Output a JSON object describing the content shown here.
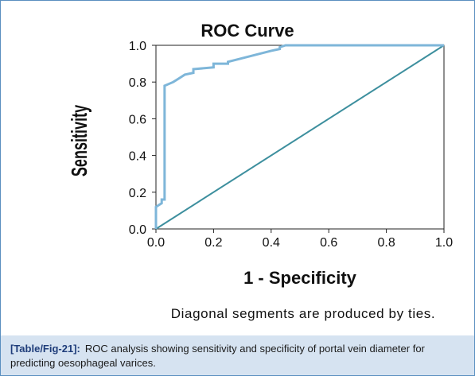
{
  "chart_data": {
    "type": "line",
    "title": "ROC Curve",
    "xlabel": "1 - Specificity",
    "ylabel": "Sensitivity",
    "xlim": [
      0,
      1
    ],
    "ylim": [
      0,
      1
    ],
    "x_ticks": [
      "0.0",
      "0.2",
      "0.4",
      "0.6",
      "0.8",
      "1.0"
    ],
    "y_ticks": [
      "0.0",
      "0.2",
      "0.4",
      "0.6",
      "0.8",
      "1.0"
    ],
    "grid": false,
    "note": "Diagonal segments are produced by ties.",
    "colors": {
      "curve": "#7eb6d9",
      "reference": "#3d8f9e"
    },
    "series": [
      {
        "x": [
          0,
          0,
          0.02,
          0.02,
          0.03,
          0.03,
          0.06,
          0.08,
          0.1,
          0.13,
          0.13,
          0.2,
          0.2,
          0.25,
          0.25,
          0.3,
          0.35,
          0.4,
          0.43,
          0.43,
          0.45,
          0.55,
          0.7,
          0.85,
          1.0
        ],
        "y": [
          0,
          0.12,
          0.14,
          0.16,
          0.16,
          0.78,
          0.8,
          0.82,
          0.84,
          0.85,
          0.87,
          0.88,
          0.9,
          0.9,
          0.91,
          0.93,
          0.95,
          0.97,
          0.98,
          0.99,
          1.0,
          1.0,
          1.0,
          1.0,
          1.0
        ]
      },
      {
        "x": [
          0,
          1
        ],
        "y": [
          0,
          1
        ]
      }
    ]
  },
  "caption": {
    "label": "[Table/Fig-21]:",
    "text": "ROC analysis showing sensitivity and specificity of portal vein diameter for predicting oesophageal varices."
  }
}
